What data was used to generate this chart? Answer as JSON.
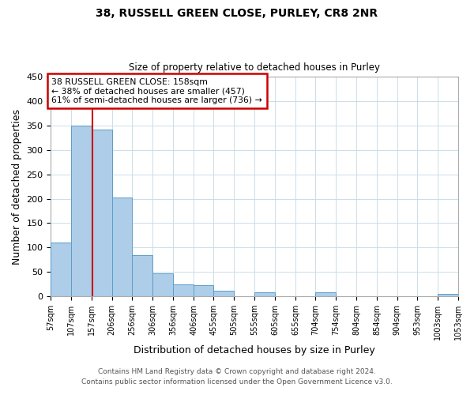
{
  "title1": "38, RUSSELL GREEN CLOSE, PURLEY, CR8 2NR",
  "title2": "Size of property relative to detached houses in Purley",
  "xlabel": "Distribution of detached houses by size in Purley",
  "ylabel": "Number of detached properties",
  "bin_edges": [
    57,
    107,
    157,
    206,
    256,
    306,
    356,
    406,
    455,
    505,
    555,
    605,
    655,
    704,
    754,
    804,
    854,
    904,
    953,
    1003,
    1053
  ],
  "bin_labels": [
    "57sqm",
    "107sqm",
    "157sqm",
    "206sqm",
    "256sqm",
    "306sqm",
    "356sqm",
    "406sqm",
    "455sqm",
    "505sqm",
    "555sqm",
    "605sqm",
    "655sqm",
    "704sqm",
    "754sqm",
    "804sqm",
    "854sqm",
    "904sqm",
    "953sqm",
    "1003sqm",
    "1053sqm"
  ],
  "bar_heights": [
    110,
    350,
    342,
    203,
    85,
    47,
    25,
    22,
    12,
    0,
    8,
    0,
    0,
    8,
    0,
    0,
    0,
    0,
    0,
    5
  ],
  "bar_color": "#aecde8",
  "bar_edge_color": "#5a9ec8",
  "property_line_x": 158,
  "property_line_color": "#cc0000",
  "annotation_line1": "38 RUSSELL GREEN CLOSE: 158sqm",
  "annotation_line2": "← 38% of detached houses are smaller (457)",
  "annotation_line3": "61% of semi-detached houses are larger (736) →",
  "annotation_box_color": "#cc0000",
  "ylim": [
    0,
    450
  ],
  "yticks": [
    0,
    50,
    100,
    150,
    200,
    250,
    300,
    350,
    400,
    450
  ],
  "footer1": "Contains HM Land Registry data © Crown copyright and database right 2024.",
  "footer2": "Contains public sector information licensed under the Open Government Licence v3.0.",
  "bg_color": "#ffffff",
  "grid_color": "#ccdde8"
}
